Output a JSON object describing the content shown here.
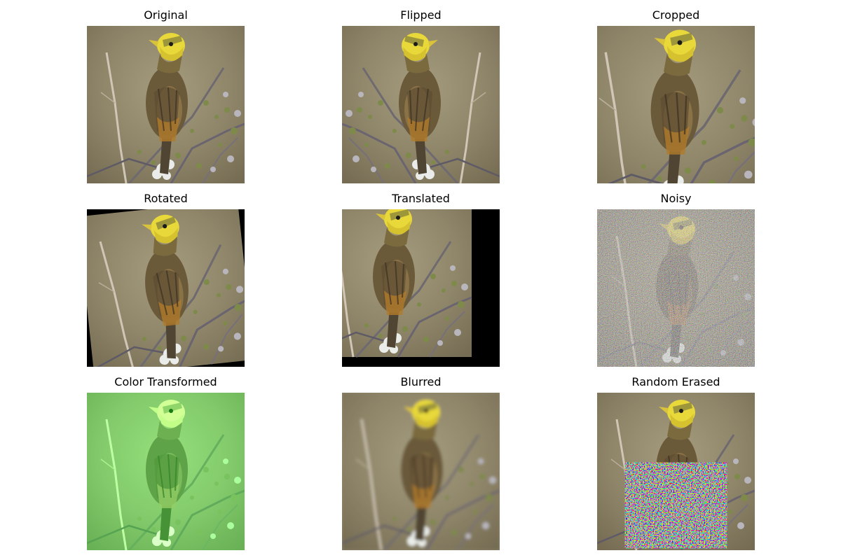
{
  "panels": [
    {
      "title": "Original",
      "icon": "bird-photo-icon"
    },
    {
      "title": "Flipped",
      "icon": "bird-photo-flipped-icon"
    },
    {
      "title": "Cropped",
      "icon": "bird-photo-cropped-icon"
    },
    {
      "title": "Rotated",
      "icon": "bird-photo-rotated-icon"
    },
    {
      "title": "Translated",
      "icon": "bird-photo-translated-icon"
    },
    {
      "title": "Noisy",
      "icon": "bird-photo-noisy-icon"
    },
    {
      "title": "Color Transformed",
      "icon": "bird-photo-color-icon"
    },
    {
      "title": "Blurred",
      "icon": "bird-photo-blurred-icon"
    },
    {
      "title": "Random Erased",
      "icon": "bird-photo-erased-icon"
    }
  ],
  "colors": {
    "background_olive": "#958b6e",
    "plumage_yellow": "#e8d83a",
    "plumage_brown": "#6b5a3a",
    "green_tint": "#5fdc4a"
  }
}
